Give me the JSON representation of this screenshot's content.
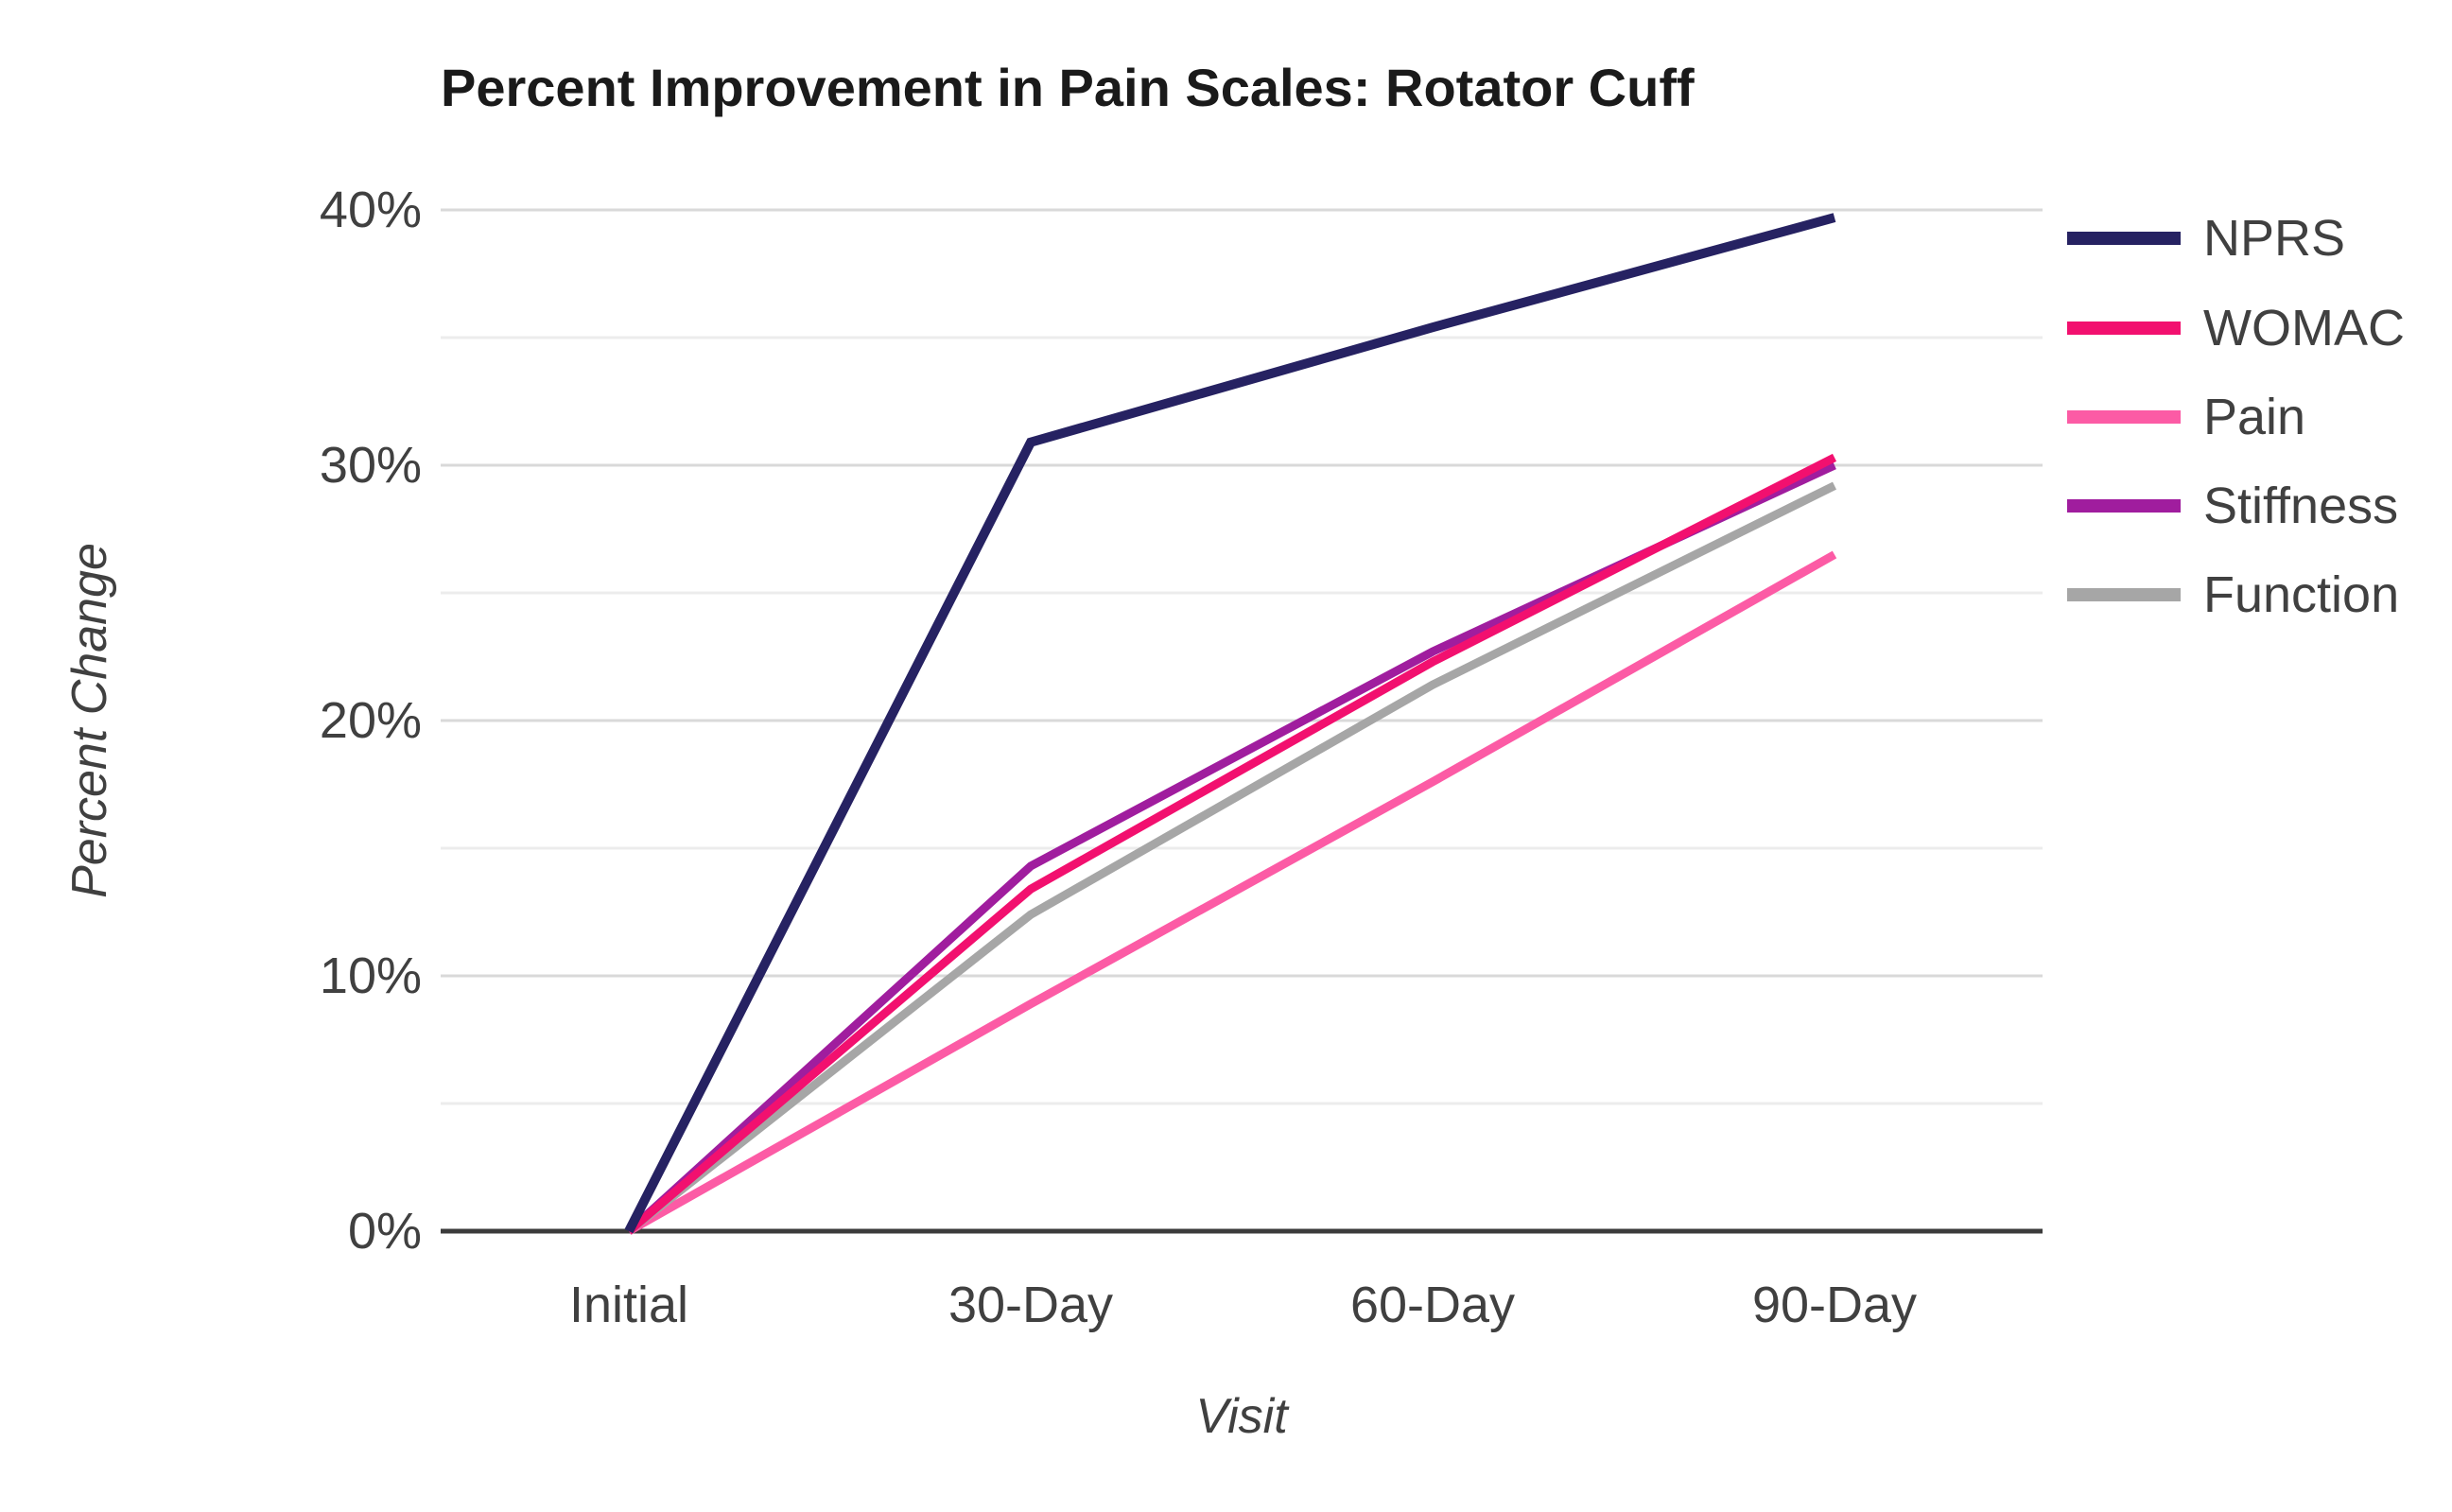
{
  "chart_data": {
    "type": "line",
    "title": "Percent Improvement in Pain Scales: Rotator Cuff",
    "xlabel": "Visit",
    "ylabel": "Percent Change",
    "categories": [
      "Initial",
      "30-Day",
      "60-Day",
      "90-Day"
    ],
    "series": [
      {
        "name": "NPRS",
        "color": "#262262",
        "values": [
          0,
          30.9,
          35.4,
          39.7
        ]
      },
      {
        "name": "WOMAC",
        "color": "#F2106F",
        "values": [
          0,
          13.4,
          22.3,
          30.3
        ]
      },
      {
        "name": "Pain",
        "color": "#FC5BA5",
        "values": [
          0,
          8.9,
          17.6,
          26.5
        ]
      },
      {
        "name": "Stiffness",
        "color": "#A01D9E",
        "values": [
          0,
          14.3,
          22.7,
          30.0
        ]
      },
      {
        "name": "Function",
        "color": "#A6A6A6",
        "values": [
          0,
          12.4,
          21.4,
          29.2
        ]
      }
    ],
    "ylim": [
      0,
      40
    ],
    "y_major_step": 10,
    "y_minor_step": 5,
    "y_tick_format": "percent",
    "grid": true,
    "legend_position": "right"
  },
  "colors": {
    "title_text": "#1a1a1a",
    "tick_text": "#404040",
    "legend_text": "#404040",
    "axis_line": "#3b3b3b",
    "grid_major": "#d9d9d9",
    "grid_minor": "#ececec",
    "background": "#ffffff"
  }
}
